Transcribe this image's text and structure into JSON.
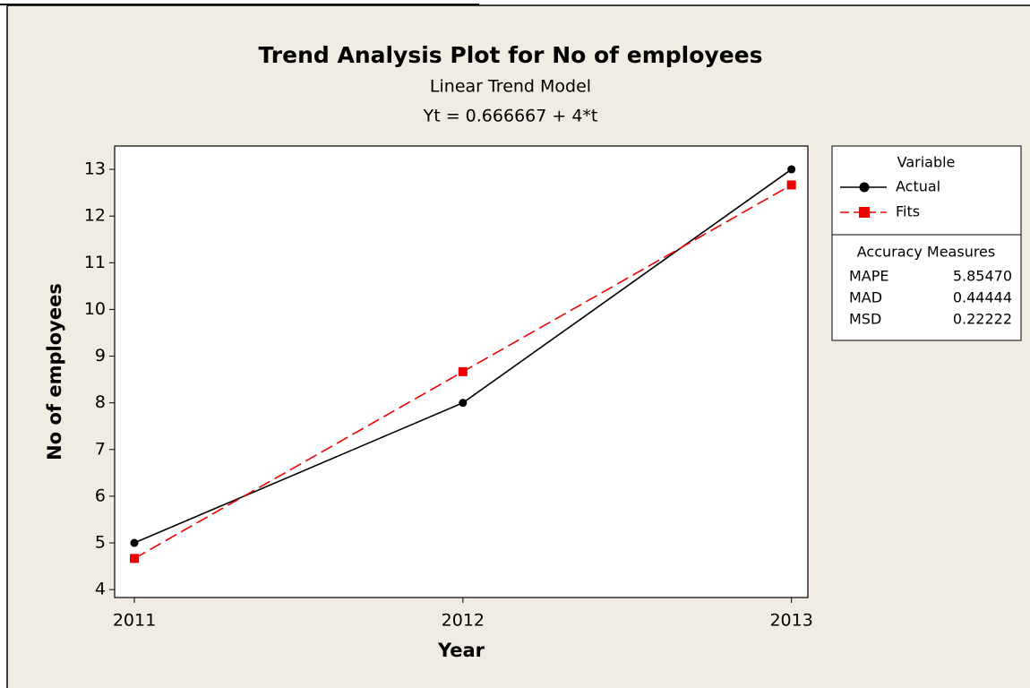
{
  "chart_data": {
    "type": "line",
    "title": "Trend Analysis Plot for No of employees",
    "subtitle": "Linear Trend Model",
    "equation": "Yt = 0.666667 + 4*t",
    "x_label": "Year",
    "y_label": "No of employees",
    "x": [
      2011,
      2012,
      2013
    ],
    "xlim": [
      2010.94,
      2013.05
    ],
    "xticks": [
      2011,
      2012,
      2013
    ],
    "ylim": [
      3.83,
      13.5
    ],
    "yticks": [
      4,
      5,
      6,
      7,
      8,
      9,
      10,
      11,
      12,
      13
    ],
    "legend_title": "Variable",
    "series": [
      {
        "name": "Actual",
        "color": "#000000",
        "marker": "circle",
        "dashed": false,
        "values": [
          5,
          8,
          13
        ]
      },
      {
        "name": "Fits",
        "color": "#ee0000",
        "marker": "square",
        "dashed": true,
        "values": [
          4.666667,
          8.666667,
          12.666667
        ]
      }
    ],
    "accuracy_measures": {
      "title": "Accuracy Measures",
      "rows": [
        [
          "MAPE",
          "5.85470"
        ],
        [
          "MAD",
          "0.44444"
        ],
        [
          "MSD",
          "0.22222"
        ]
      ]
    }
  }
}
